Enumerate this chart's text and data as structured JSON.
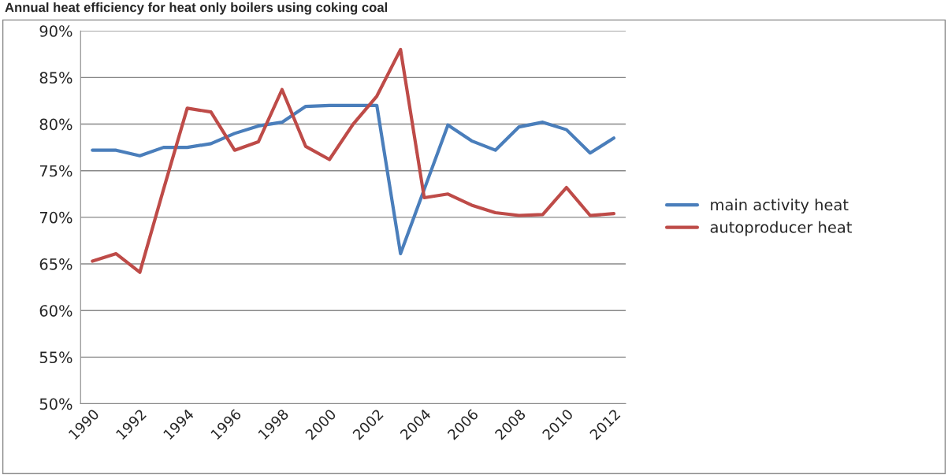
{
  "chart_data": {
    "type": "line",
    "title": "Annual heat efficiency for heat only boilers using coking coal",
    "categories": [
      "1990",
      null,
      "1992",
      null,
      "1994",
      null,
      "1996",
      null,
      "1998",
      null,
      "2000",
      null,
      "2002",
      null,
      "2004",
      null,
      "2006",
      null,
      "2008",
      null,
      "2010",
      null,
      "2012"
    ],
    "series": [
      {
        "name": "main activity heat",
        "color": "#4a7ebb",
        "values": [
          77.2,
          77.2,
          76.6,
          77.5,
          77.5,
          77.9,
          79,
          79.8,
          80.2,
          81.9,
          82,
          82,
          82,
          66.1,
          73,
          79.9,
          78.2,
          77.2,
          79.7,
          80.2,
          79.4,
          76.9,
          78.5
        ]
      },
      {
        "name": "autoproducer heat",
        "color": "#be4b48",
        "values": [
          65.3,
          66.1,
          64.1,
          73,
          81.7,
          81.3,
          77.2,
          78.1,
          83.7,
          77.6,
          76.2,
          80,
          83,
          88,
          72.1,
          72.5,
          71.3,
          70.5,
          70.2,
          70.3,
          73.2,
          70.2,
          70.4
        ]
      }
    ],
    "ylim": [
      50,
      90
    ],
    "yticks": [
      {
        "value": 50,
        "label": "50%"
      },
      {
        "value": 55,
        "label": "55%"
      },
      {
        "value": 60,
        "label": "60%"
      },
      {
        "value": 65,
        "label": "65%"
      },
      {
        "value": 70,
        "label": "70%"
      },
      {
        "value": 75,
        "label": "75%"
      },
      {
        "value": 80,
        "label": "80%"
      },
      {
        "value": 85,
        "label": "85%"
      },
      {
        "value": 90,
        "label": "90%"
      }
    ],
    "grid": "y",
    "legend": "right",
    "marker": "none",
    "line_style": "solid"
  }
}
